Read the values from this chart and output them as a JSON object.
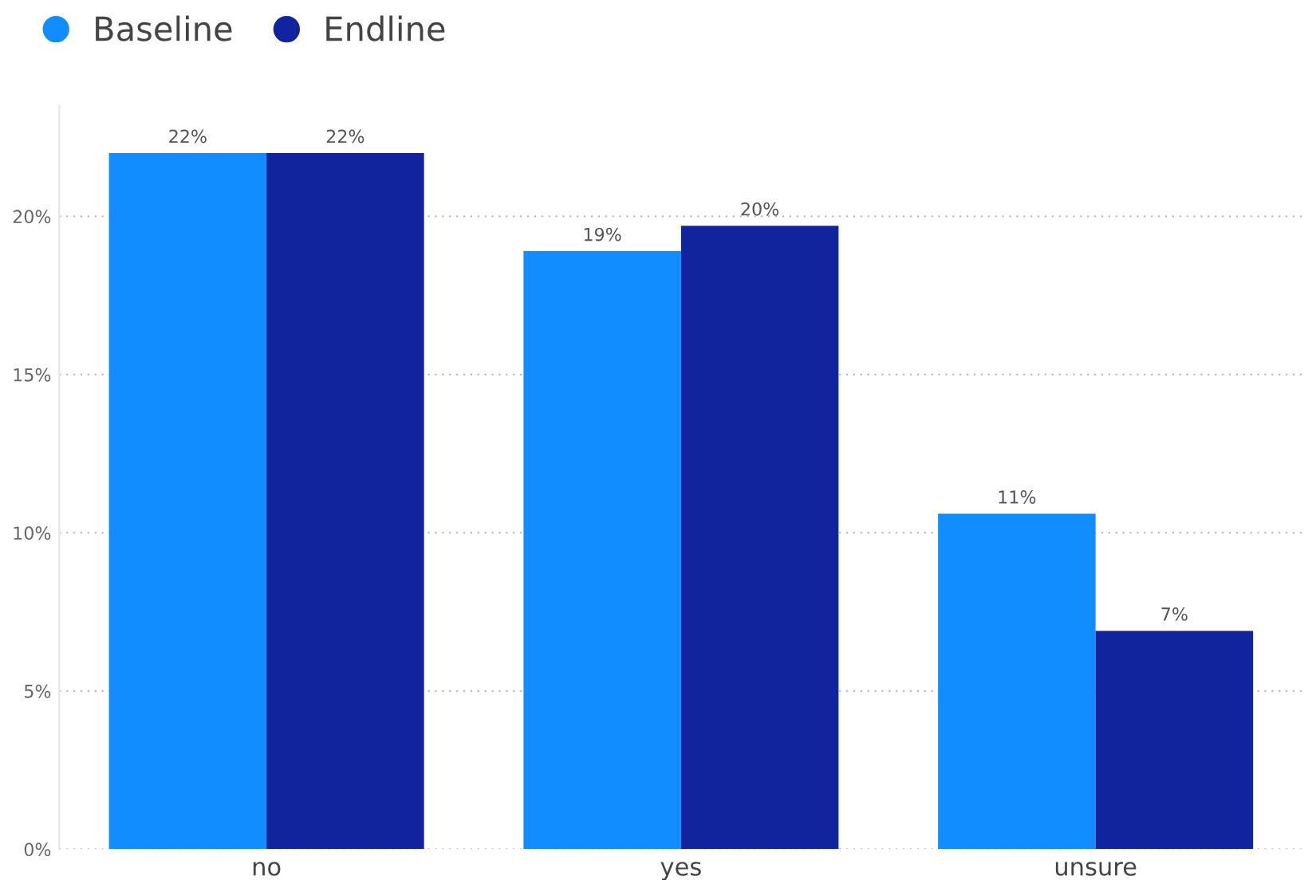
{
  "chart_data": {
    "type": "bar",
    "categories": [
      "no",
      "yes",
      "unsure"
    ],
    "series": [
      {
        "name": "Baseline",
        "color": "#118dff",
        "values": [
          22.0,
          18.9,
          10.6
        ],
        "value_labels": [
          "22%",
          "19%",
          "11%"
        ]
      },
      {
        "name": "Endline",
        "color": "#12239e",
        "values": [
          22.0,
          19.7,
          6.9
        ],
        "value_labels": [
          "22%",
          "20%",
          "7%"
        ]
      }
    ],
    "ylim": [
      0,
      23.5
    ],
    "yticks": [
      {
        "value": 0,
        "label": "0%"
      },
      {
        "value": 5,
        "label": "5%"
      },
      {
        "value": 10,
        "label": "10%"
      },
      {
        "value": 15,
        "label": "15%"
      },
      {
        "value": 20,
        "label": "20%"
      }
    ],
    "grid": "y",
    "legend": "top left"
  }
}
